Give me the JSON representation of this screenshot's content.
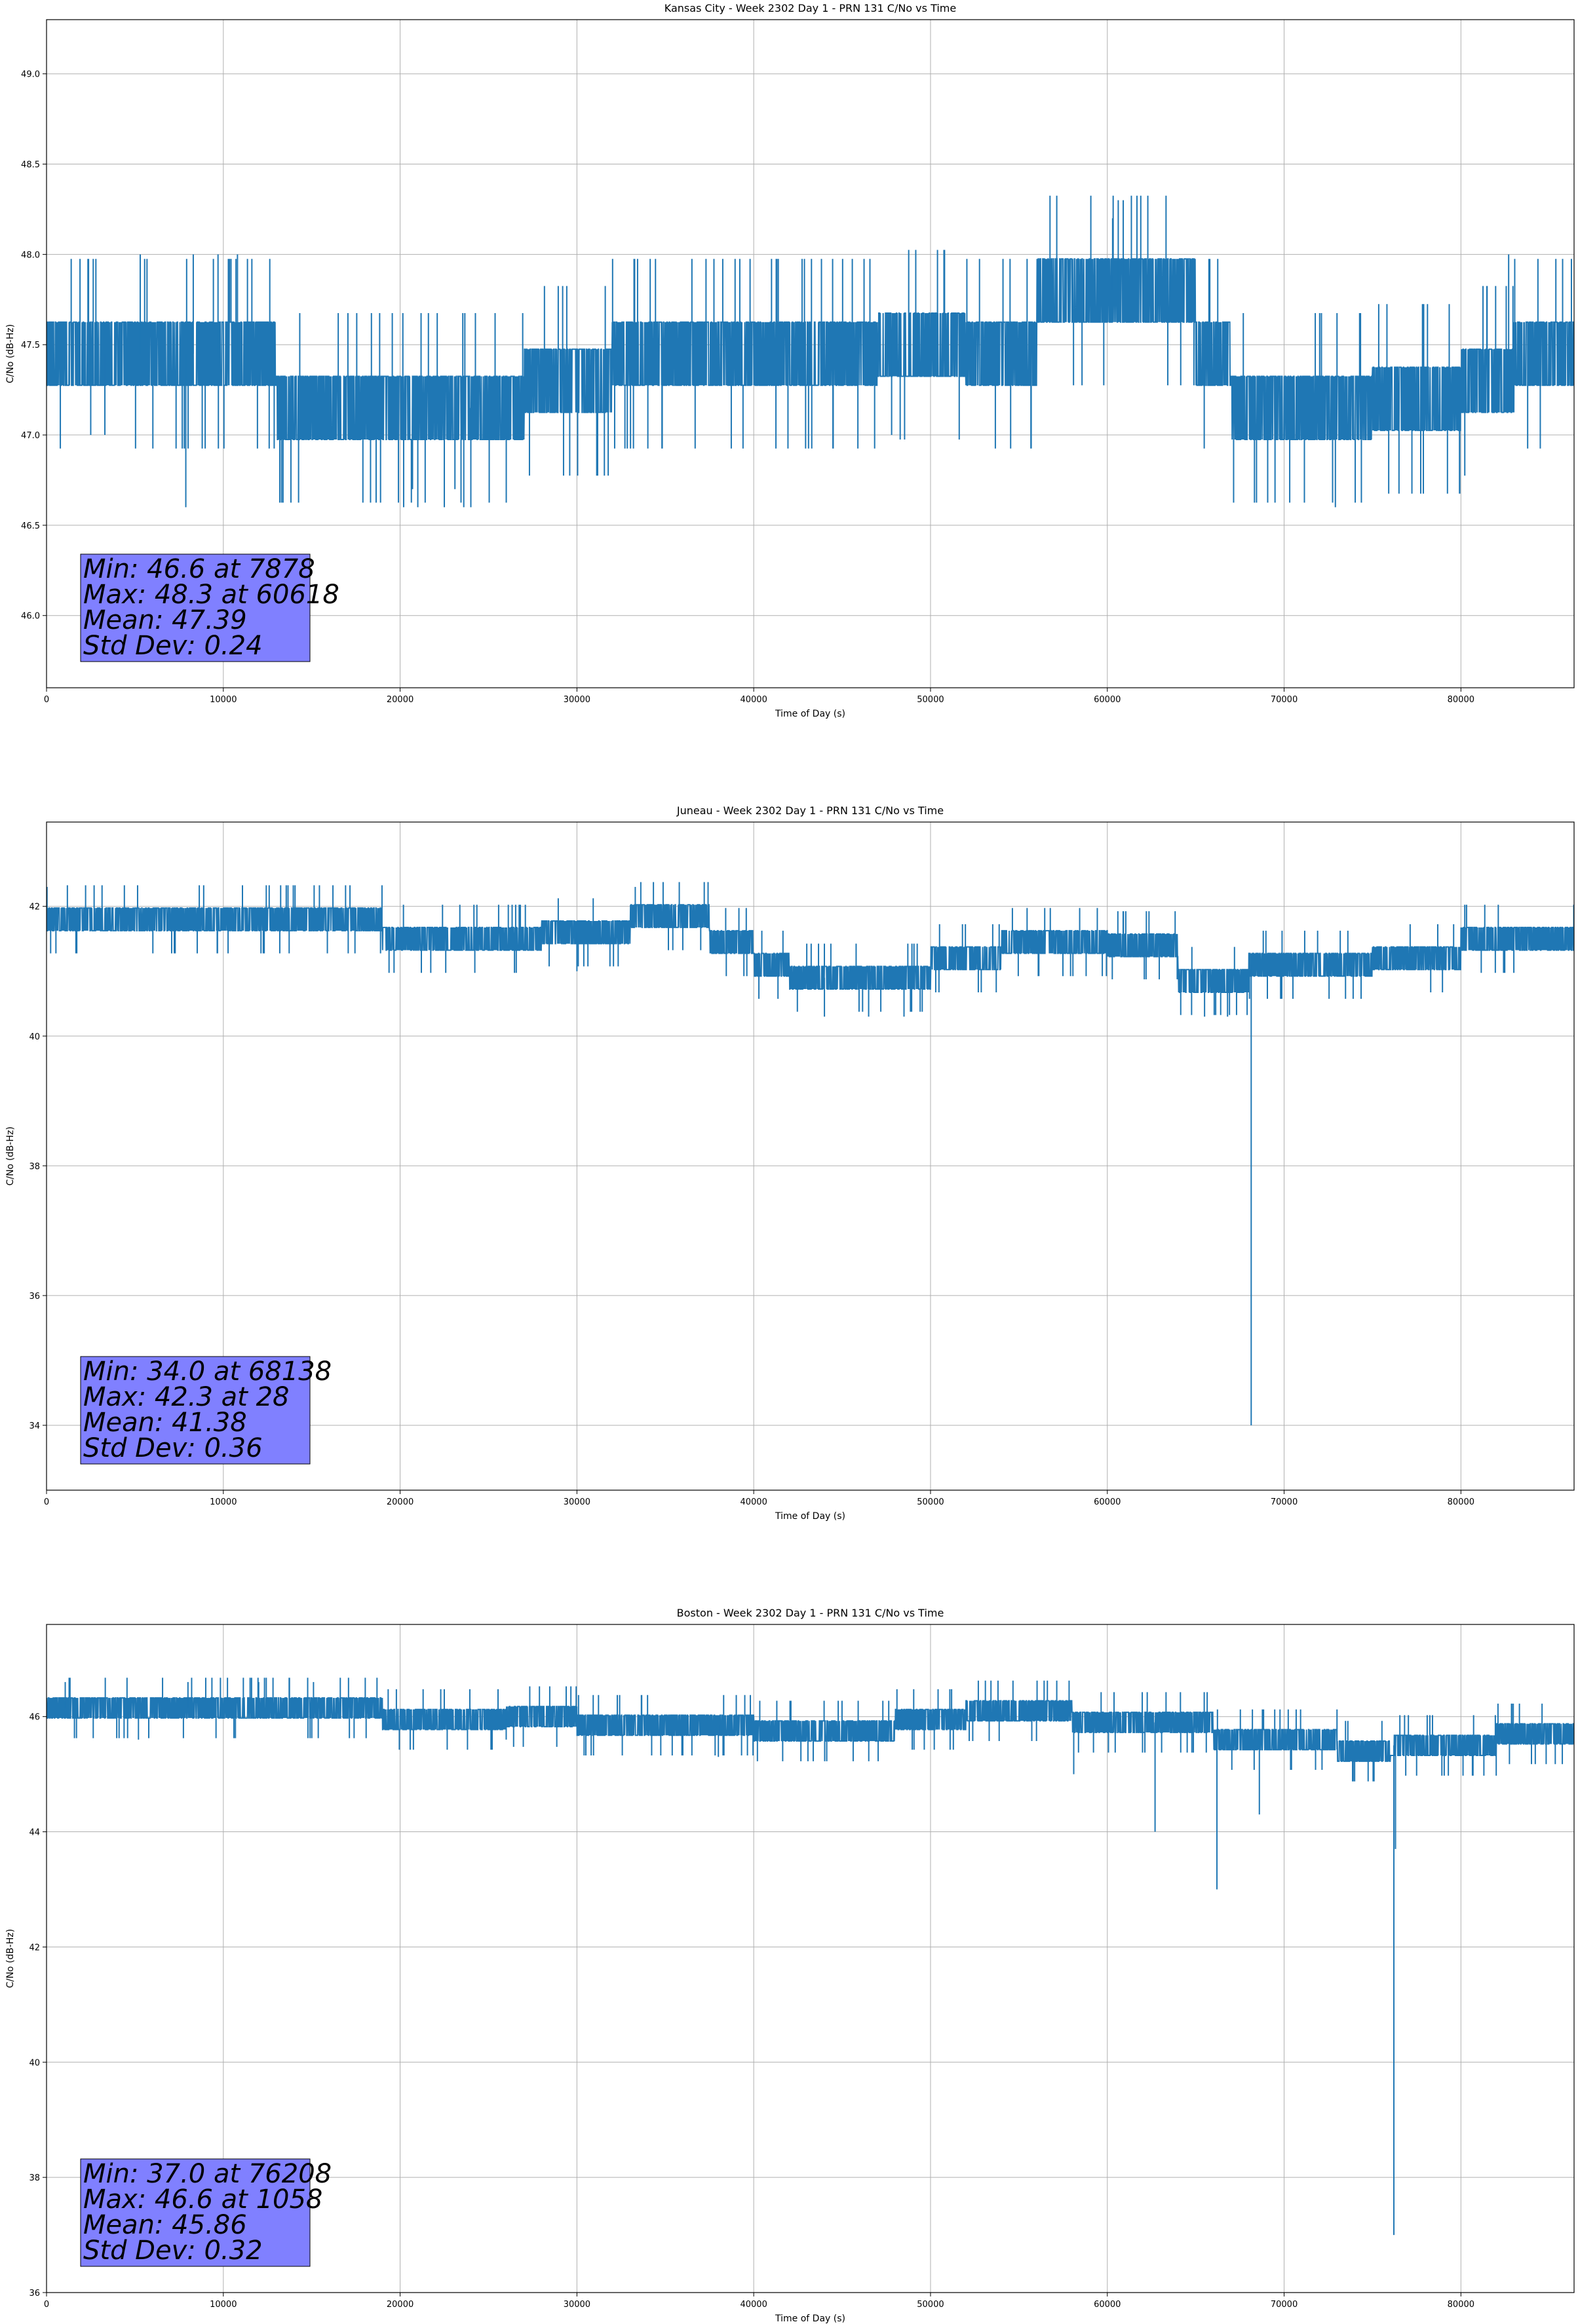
{
  "colors": {
    "series": "#1f77b4",
    "grid": "#b0b0b0",
    "stats_box_fill": "#8080ff",
    "stats_box_stroke": "#000000"
  },
  "chart_data": [
    {
      "type": "line",
      "title": "Kansas City - Week 2302 Day 1 - PRN 131 C/No vs Time",
      "xlabel": "Time of Day (s)",
      "ylabel": "C/No (dB-Hz)",
      "xlim": [
        0,
        86400
      ],
      "ylim": [
        45.6,
        49.3
      ],
      "xticks": [
        0,
        10000,
        20000,
        30000,
        40000,
        50000,
        60000,
        70000,
        80000
      ],
      "yticks": [
        46.0,
        46.5,
        47.0,
        47.5,
        48.0,
        48.5,
        49.0
      ],
      "ytick_decimals": 1,
      "grid": true,
      "stats": [
        "Min: 46.6 at 7878",
        "Max: 48.3 at 60618",
        "Mean: 47.39",
        "Std Dev: 0.24"
      ],
      "series": [
        {
          "quantum": 0.35,
          "levels": [
            [
              0,
              47.45
            ],
            [
              13000,
              47.15
            ],
            [
              27000,
              47.3
            ],
            [
              32000,
              47.45
            ],
            [
              47000,
              47.5
            ],
            [
              52000,
              47.45
            ],
            [
              56000,
              47.8
            ],
            [
              65000,
              47.45
            ],
            [
              67000,
              47.15
            ],
            [
              75000,
              47.2
            ],
            [
              80000,
              47.3
            ],
            [
              83000,
              47.45
            ],
            [
              86400,
              47.45
            ]
          ],
          "spikes": [
            [
              7878,
              46.6
            ],
            [
              60618,
              48.3
            ],
            [
              60900,
              48.3
            ],
            [
              60300,
              48.2
            ],
            [
              20200,
              46.6
            ],
            [
              21000,
              46.6
            ],
            [
              22500,
              46.6
            ],
            [
              23600,
              46.6
            ],
            [
              24000,
              46.6
            ],
            [
              20700,
              46.7
            ],
            [
              23100,
              46.7
            ],
            [
              72900,
              46.6
            ],
            [
              82700,
              48.0
            ],
            [
              5300,
              48.0
            ],
            [
              8300,
              48.0
            ],
            [
              9700,
              48.0
            ],
            [
              10800,
              48.0
            ],
            [
              47800,
              47.0
            ],
            [
              2500,
              47.0
            ],
            [
              3300,
              47.0
            ]
          ]
        }
      ]
    },
    {
      "type": "line",
      "title": "Juneau - Week 2302 Day 1 - PRN 131 C/No vs Time",
      "xlabel": "Time of Day (s)",
      "ylabel": "C/No (dB-Hz)",
      "xlim": [
        0,
        86400
      ],
      "ylim": [
        33.0,
        43.3
      ],
      "xticks": [
        0,
        10000,
        20000,
        30000,
        40000,
        50000,
        60000,
        70000,
        80000
      ],
      "yticks": [
        34,
        36,
        38,
        40,
        42
      ],
      "ytick_decimals": 0,
      "grid": true,
      "stats": [
        "Min: 34.0 at 68138",
        "Max: 42.3 at 28",
        "Mean: 41.38",
        "Std Dev: 0.36"
      ],
      "series": [
        {
          "quantum": 0.35,
          "levels": [
            [
              0,
              41.8
            ],
            [
              19000,
              41.5
            ],
            [
              28000,
              41.6
            ],
            [
              33000,
              41.85
            ],
            [
              37500,
              41.45
            ],
            [
              40000,
              41.1
            ],
            [
              42000,
              40.9
            ],
            [
              50000,
              41.2
            ],
            [
              54000,
              41.45
            ],
            [
              60000,
              41.4
            ],
            [
              64000,
              40.85
            ],
            [
              68000,
              41.1
            ],
            [
              75000,
              41.2
            ],
            [
              80000,
              41.5
            ],
            [
              86400,
              41.5
            ]
          ],
          "spikes": [
            [
              68138,
              34.0
            ],
            [
              28,
              42.3
            ],
            [
              33300,
              42.3
            ],
            [
              44000,
              40.3
            ],
            [
              46500,
              40.3
            ],
            [
              48500,
              40.3
            ],
            [
              65500,
              40.3
            ],
            [
              66800,
              40.3
            ],
            [
              30000,
              41.0
            ]
          ]
        }
      ]
    },
    {
      "type": "line",
      "title": "Boston - Week 2302 Day 1 - PRN 131 C/No vs Time",
      "xlabel": "Time of Day (s)",
      "ylabel": "C/No (dB-Hz)",
      "xlim": [
        0,
        86400
      ],
      "ylim": [
        36.0,
        47.6
      ],
      "xticks": [
        0,
        10000,
        20000,
        30000,
        40000,
        50000,
        60000,
        70000,
        80000
      ],
      "yticks": [
        36,
        38,
        40,
        42,
        44,
        46
      ],
      "ytick_decimals": 0,
      "grid": true,
      "stats": [
        "Min: 37.0 at 76208",
        "Max: 46.6 at 1058",
        "Mean: 45.86",
        "Std Dev: 0.32"
      ],
      "series": [
        {
          "quantum": 0.35,
          "levels": [
            [
              0,
              46.15
            ],
            [
              19000,
              45.95
            ],
            [
              26000,
              46.0
            ],
            [
              30000,
              45.85
            ],
            [
              40000,
              45.75
            ],
            [
              48000,
              45.95
            ],
            [
              52000,
              46.1
            ],
            [
              58000,
              45.9
            ],
            [
              66000,
              45.6
            ],
            [
              73000,
              45.4
            ],
            [
              76000,
              45.5
            ],
            [
              82000,
              45.7
            ],
            [
              86400,
              45.75
            ]
          ],
          "spikes": [
            [
              76208,
              37.0
            ],
            [
              76300,
              43.7
            ],
            [
              66200,
              43.0
            ],
            [
              62700,
              44.0
            ],
            [
              58100,
              45.0
            ],
            [
              68600,
              44.3
            ],
            [
              1058,
              46.6
            ],
            [
              8000,
              46.6
            ],
            [
              15100,
              46.6
            ],
            [
              12000,
              46.6
            ],
            [
              5200,
              45.6
            ],
            [
              38000,
              45.3
            ],
            [
              26000,
              45.6
            ]
          ]
        }
      ]
    }
  ]
}
